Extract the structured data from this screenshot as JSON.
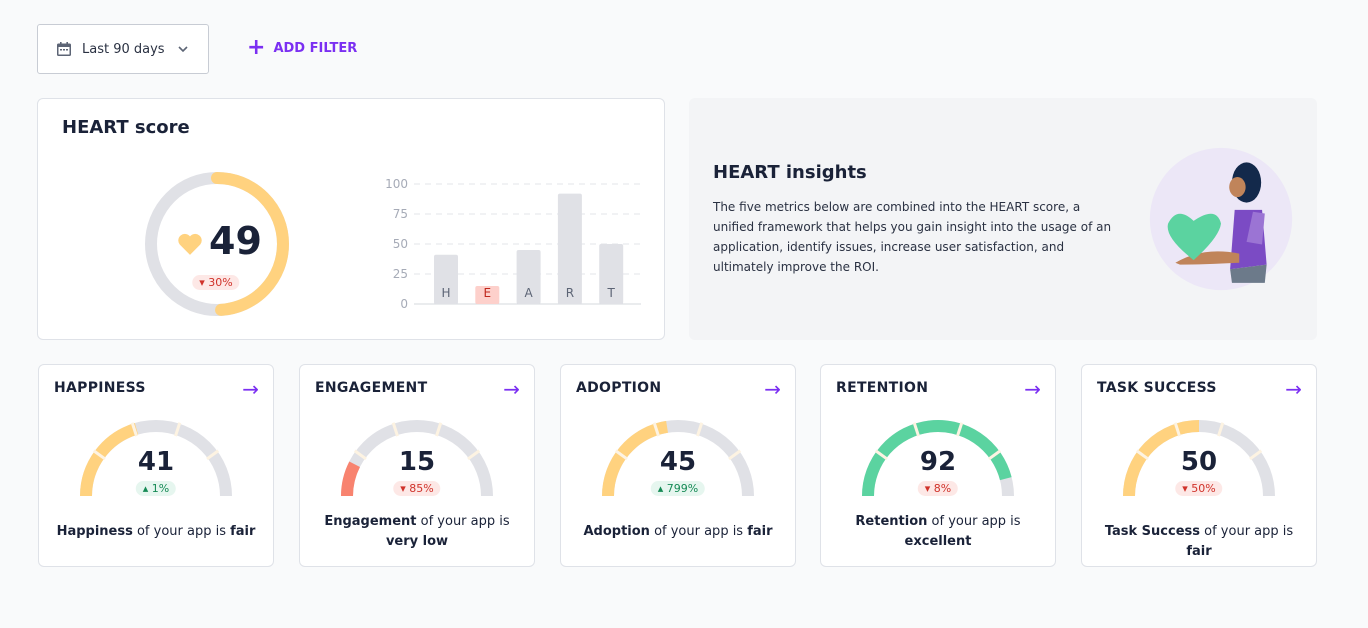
{
  "toolbar": {
    "date_range": "Last 90 days",
    "add_filter": "ADD FILTER"
  },
  "heart_score": {
    "title": "HEART score",
    "value": "49",
    "change": "30%",
    "change_dir": "down",
    "fraction": 0.49,
    "color": "#ffd27f"
  },
  "chart_data": {
    "type": "bar",
    "categories": [
      "H",
      "E",
      "A",
      "R",
      "T"
    ],
    "values": [
      41,
      15,
      45,
      92,
      50
    ],
    "highlight": "E",
    "yticks": [
      "0",
      "25",
      "50",
      "75",
      "100"
    ],
    "ylim": [
      0,
      100
    ],
    "colors": {
      "normal": "#e0e1e6",
      "highlight": "#fdd0cb"
    }
  },
  "insights": {
    "title": "HEART insights",
    "text": "The five metrics below are combined into the HEART score, a unified framework that helps you gain insight into the usage of an application, identify issues, increase user satisfaction, and ultimately improve the ROI."
  },
  "metrics": [
    {
      "title": "HAPPINESS",
      "value": "41",
      "pct": 41,
      "change": "1%",
      "dir": "up",
      "name": "Happiness",
      "mid": " of your app is ",
      "rating": "fair",
      "color": "#ffd27f"
    },
    {
      "title": "ENGAGEMENT",
      "value": "15",
      "pct": 15,
      "change": "85%",
      "dir": "down",
      "name": "Engagement",
      "mid": " of your app is ",
      "rating": "very low",
      "color": "#f8836f"
    },
    {
      "title": "ADOPTION",
      "value": "45",
      "pct": 45,
      "change": "799%",
      "dir": "up",
      "name": "Adoption",
      "mid": " of your app is ",
      "rating": "fair",
      "color": "#ffd27f"
    },
    {
      "title": "RETENTION",
      "value": "92",
      "pct": 92,
      "change": "8%",
      "dir": "down",
      "name": "Retention",
      "mid": " of your app is ",
      "rating": "excellent",
      "color": "#5bd3a0"
    },
    {
      "title": "TASK SUCCESS",
      "value": "50",
      "pct": 50,
      "change": "50%",
      "dir": "down",
      "name": "Task Success",
      "mid": " of your app is ",
      "rating": "fair",
      "color": "#ffd27f"
    }
  ]
}
